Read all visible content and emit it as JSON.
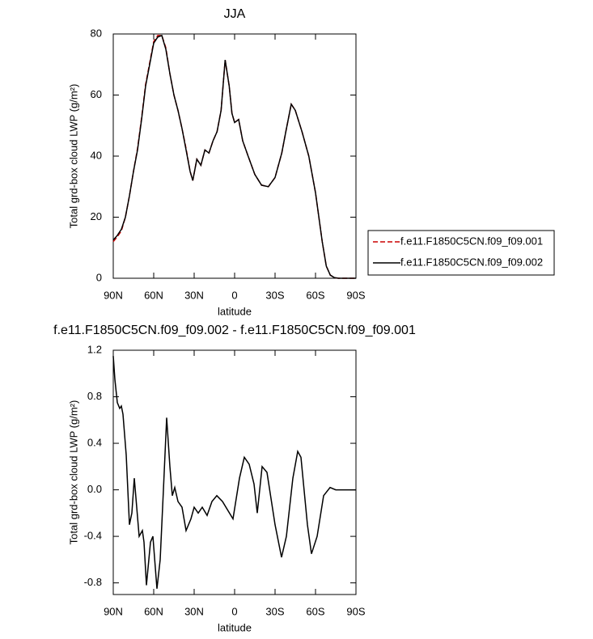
{
  "chart_data": [
    {
      "type": "line",
      "title": "JJA",
      "xlabel": "latitude",
      "ylabel": "Total grd-box cloud LWP (g/m²)",
      "x": [
        90,
        87,
        84,
        81,
        78,
        75,
        72,
        69,
        66,
        63,
        60,
        57,
        54,
        51,
        48,
        45,
        42,
        39,
        36,
        33,
        31,
        28,
        25,
        22,
        19,
        16,
        13,
        10,
        7,
        4,
        2,
        0,
        -3,
        -6,
        -10,
        -15,
        -20,
        -25,
        -30,
        -35,
        -38,
        -42,
        -45,
        -50,
        -55,
        -60,
        -65,
        -68,
        -71,
        -74,
        -77,
        -80,
        -85,
        -90
      ],
      "series": [
        {
          "name": "f.e11.F1850C5CN.f09_f09.001",
          "color": "#cc0000",
          "linestyle": "dashed",
          "values": [
            12,
            13.6,
            15.5,
            20,
            27,
            35,
            42.5,
            52.5,
            63.5,
            70.5,
            77.5,
            79.5,
            79.5,
            75.5,
            67,
            60,
            55,
            49,
            42.5,
            35,
            32,
            39,
            37,
            42,
            41,
            45,
            48,
            55,
            71.5,
            63,
            54,
            51,
            52,
            45,
            40,
            34,
            30.5,
            30,
            33,
            41,
            48,
            57,
            55,
            48,
            40,
            28,
            12,
            4,
            1,
            0.2,
            0,
            0,
            0,
            0
          ]
        },
        {
          "name": "f.e11.F1850C5CN.f09_f09.002",
          "color": "#000000",
          "linestyle": "solid",
          "values": [
            12.5,
            14,
            16,
            20,
            27,
            35,
            42,
            52,
            63,
            70,
            77,
            79,
            79.5,
            75,
            67,
            60,
            55,
            49,
            42,
            35,
            32,
            39,
            37,
            42,
            41,
            45,
            48,
            55,
            71.5,
            63,
            54,
            51,
            52,
            45,
            40,
            34,
            30.5,
            30,
            33,
            41,
            48,
            57,
            55,
            48,
            40,
            28,
            12,
            4,
            1,
            0.2,
            0,
            0,
            0,
            0
          ]
        }
      ],
      "xlim": [
        90,
        -90
      ],
      "xticks": [
        {
          "value": 90,
          "label": "90N"
        },
        {
          "value": 60,
          "label": "60N"
        },
        {
          "value": 30,
          "label": "30N"
        },
        0,
        {
          "value": -30,
          "label": "30S"
        },
        {
          "value": -60,
          "label": "60S"
        },
        {
          "value": -90,
          "label": "90S"
        }
      ],
      "ylim": [
        0,
        80
      ],
      "yticks": [
        0,
        20,
        40,
        60,
        80
      ],
      "legend": "right"
    },
    {
      "type": "line",
      "title": "f.e11.F1850C5CN.f09_f09.002 - f.e11.F1850C5CN.f09_f09.001",
      "xlabel": "latitude",
      "ylabel": "Total grd-box cloud LWP (g/m²)",
      "x": [
        90,
        88.8,
        87,
        85.2,
        84,
        82.8,
        80.4,
        79.2,
        78,
        76.2,
        74.4,
        70.8,
        68.4,
        67.2,
        65.4,
        62.4,
        60.6,
        57.6,
        55.2,
        52.8,
        50.4,
        48,
        46.2,
        44.4,
        42,
        39,
        36,
        32.4,
        30,
        27,
        24,
        20.4,
        16.8,
        13.2,
        9,
        1.2,
        -3.6,
        -7.2,
        -10.8,
        -14.4,
        -16.8,
        -20.4,
        -24,
        -30,
        -34.8,
        -38.4,
        -43.2,
        -46.8,
        -49.2,
        -54,
        -57,
        -61.2,
        -66,
        -70.8,
        -75,
        -90
      ],
      "series": [
        {
          "color": "#000000",
          "linestyle": "solid",
          "values": [
            1.15,
            0.95,
            0.75,
            0.7,
            0.72,
            0.65,
            0.3,
            0,
            -0.3,
            -0.2,
            0.1,
            -0.4,
            -0.35,
            -0.45,
            -0.82,
            -0.45,
            -0.4,
            -0.85,
            -0.6,
            0,
            0.62,
            0.2,
            -0.05,
            0.02,
            -0.1,
            -0.15,
            -0.35,
            -0.25,
            -0.15,
            -0.2,
            -0.15,
            -0.22,
            -0.1,
            -0.05,
            -0.1,
            -0.25,
            0.1,
            0.28,
            0.22,
            0.05,
            -0.2,
            0.2,
            0.15,
            -0.3,
            -0.58,
            -0.4,
            0.1,
            0.33,
            0.28,
            -0.3,
            -0.55,
            -0.4,
            -0.05,
            0.02,
            0,
            0
          ]
        }
      ],
      "xlim": [
        90,
        -90
      ],
      "xticks": [
        {
          "value": 90,
          "label": "90N"
        },
        {
          "value": 60,
          "label": "60N"
        },
        {
          "value": 30,
          "label": "30N"
        },
        0,
        {
          "value": -30,
          "label": "30S"
        },
        {
          "value": -60,
          "label": "60S"
        },
        {
          "value": -90,
          "label": "90S"
        }
      ],
      "ylim": [
        -0.9,
        1.2
      ],
      "yticks": [
        {
          "value": -0.8,
          "label": "-0.8"
        },
        {
          "value": -0.4,
          "label": "-0.4"
        },
        {
          "value": 0,
          "label": "0.0"
        },
        {
          "value": 0.4,
          "label": "0.4"
        },
        {
          "value": 0.8,
          "label": "0.8"
        },
        {
          "value": 1.2,
          "label": "1.2"
        }
      ]
    }
  ]
}
